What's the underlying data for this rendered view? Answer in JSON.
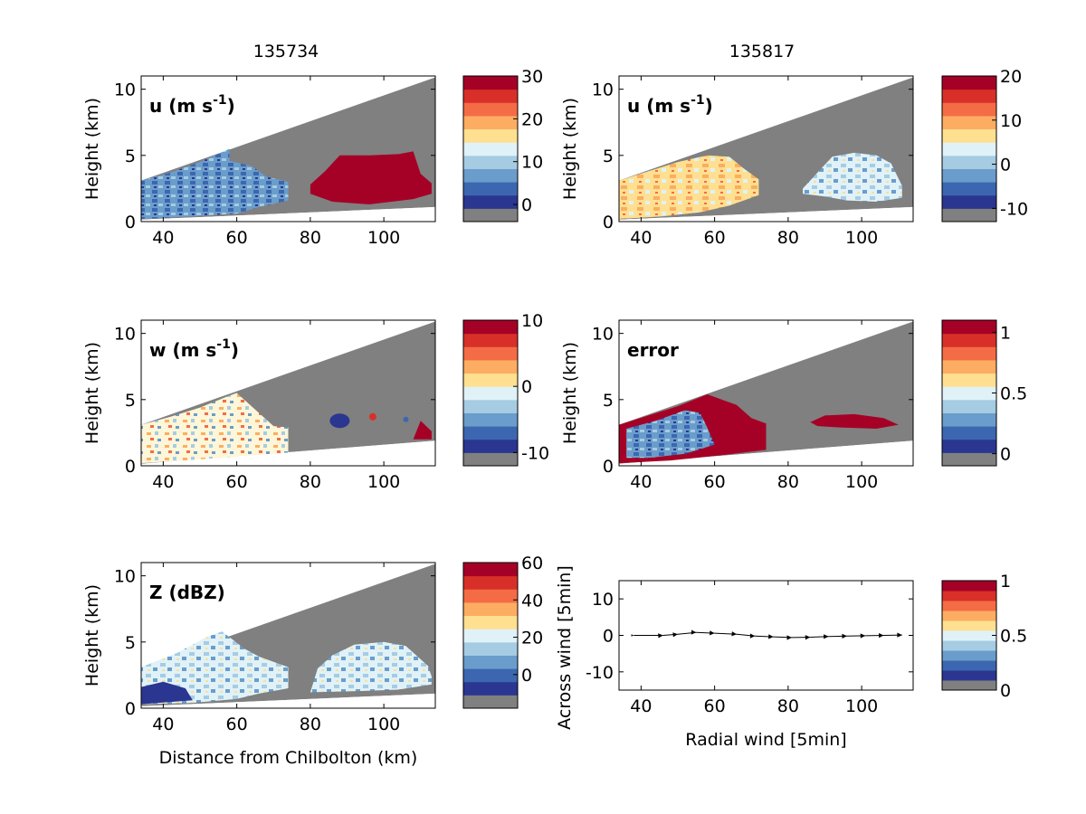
{
  "columns": {
    "left_title": "135734",
    "right_title": "135817"
  },
  "colors": {
    "scale": [
      "#808080",
      "#2b3691",
      "#3c67b0",
      "#6a9dcb",
      "#a6cce3",
      "#e0f2f8",
      "#fee090",
      "#fcad62",
      "#f46c45",
      "#d83028",
      "#a50126"
    ],
    "gray": "#808080",
    "red": "#a50126"
  },
  "chart_data": [
    {
      "id": "u-left",
      "type": "heatmap",
      "panel_label": "u (m s-1)",
      "label_main": "u (m s",
      "label_sup": "-1",
      "label_close": ")",
      "ylabel": "Height (km)",
      "xlabel": "",
      "xlim": [
        34,
        114
      ],
      "ylim": [
        0,
        11
      ],
      "xticks": [
        "40",
        "60",
        "80",
        "100"
      ],
      "yticks": [
        "0",
        "5",
        "10"
      ],
      "colorbar": {
        "ticks": [
          "30",
          "20",
          "10",
          "0"
        ],
        "range": [
          -4,
          30
        ]
      },
      "description_values": {
        "left_echo": "0-10",
        "right_echo": "30"
      }
    },
    {
      "id": "u-right",
      "type": "heatmap",
      "panel_label": "u (m s-1)",
      "label_main": "u (m s",
      "label_sup": "-1",
      "label_close": ")",
      "ylabel": "Height (km)",
      "xlabel": "",
      "xlim": [
        34,
        114
      ],
      "ylim": [
        0,
        11
      ],
      "xticks": [
        "40",
        "60",
        "80",
        "100"
      ],
      "yticks": [
        "0",
        "5",
        "10"
      ],
      "colorbar": {
        "ticks": [
          "20",
          "10",
          "0",
          "-10"
        ],
        "range": [
          -13,
          20
        ]
      }
    },
    {
      "id": "w-left",
      "type": "heatmap",
      "panel_label": "w (m s-1)",
      "label_main": "w (m s",
      "label_sup": "-1",
      "label_close": ")",
      "ylabel": "Height (km)",
      "xlabel": "",
      "xlim": [
        34,
        114
      ],
      "ylim": [
        0,
        11
      ],
      "xticks": [
        "40",
        "60",
        "80",
        "100"
      ],
      "yticks": [
        "0",
        "5",
        "10"
      ],
      "colorbar": {
        "ticks": [
          "10",
          "0",
          "-10"
        ],
        "range": [
          -12,
          10
        ]
      }
    },
    {
      "id": "error-right",
      "type": "heatmap",
      "panel_label": "error",
      "label_main": "error",
      "label_sup": "",
      "label_close": "",
      "ylabel": "Height (km)",
      "xlabel": "",
      "xlim": [
        34,
        114
      ],
      "ylim": [
        0,
        11
      ],
      "xticks": [
        "40",
        "60",
        "80",
        "100"
      ],
      "yticks": [
        "0",
        "5",
        "10"
      ],
      "colorbar": {
        "ticks": [
          "1",
          "0.5",
          "0"
        ],
        "range": [
          -0.1,
          1.1
        ]
      }
    },
    {
      "id": "z-left",
      "type": "heatmap",
      "panel_label": "Z (dBZ)",
      "label_main": "Z (dBZ)",
      "label_sup": "",
      "label_close": "",
      "ylabel": "Height (km)",
      "xlabel": "Distance from Chilbolton (km)",
      "xlim": [
        34,
        114
      ],
      "ylim": [
        0,
        11
      ],
      "xticks": [
        "40",
        "60",
        "80",
        "100"
      ],
      "yticks": [
        "0",
        "5",
        "10"
      ],
      "colorbar": {
        "ticks": [
          "60",
          "40",
          "20",
          "0"
        ],
        "range": [
          -18,
          60
        ]
      }
    },
    {
      "id": "quiver",
      "type": "scatter",
      "panel_label": "",
      "ylabel": "Across wind [5min]",
      "xlabel": "Radial wind [5min]",
      "xlim": [
        34,
        114
      ],
      "ylim": [
        -15,
        15
      ],
      "xticks": [
        "40",
        "60",
        "80",
        "100"
      ],
      "yticks": [
        "10",
        "0",
        "-10"
      ],
      "colorbar": {
        "ticks": [
          "1",
          "0.5",
          "0"
        ],
        "range": [
          0,
          1
        ]
      },
      "x": [
        38,
        46,
        50,
        55,
        60,
        66,
        71,
        76,
        81,
        86,
        91,
        96,
        101,
        106,
        111
      ],
      "y": [
        0,
        0,
        0.3,
        0.8,
        0.6,
        0.3,
        -0.2,
        -0.4,
        -0.6,
        -0.5,
        -0.3,
        -0.2,
        -0.1,
        0,
        0.1
      ]
    }
  ]
}
